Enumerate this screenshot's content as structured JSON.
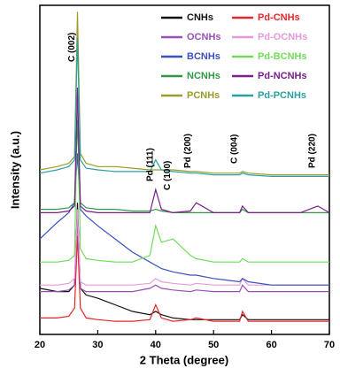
{
  "chart_data": {
    "type": "line",
    "xlabel": "2 Theta (degree)",
    "ylabel": "Intensity (a.u.)",
    "x": [
      20,
      23,
      25,
      26,
      26.5,
      27,
      28,
      30,
      33,
      36,
      39,
      40,
      41,
      43,
      46,
      47,
      50,
      54.5,
      55,
      56,
      60,
      65,
      68,
      70
    ],
    "xlim": [
      20,
      70
    ],
    "xticks": [
      20,
      30,
      40,
      50,
      60,
      70
    ],
    "ylim": [
      0,
      100
    ],
    "series": [
      {
        "name": "CNHs",
        "color": "#111111",
        "values": [
          14,
          13,
          13,
          15,
          40,
          14,
          12,
          11,
          9,
          7,
          6,
          7,
          6,
          5,
          4.5,
          4.5,
          4.5,
          4.5,
          6,
          4.5,
          4.5,
          4.5,
          4.5,
          4.5
        ]
      },
      {
        "name": "Pd-CNHs",
        "color": "#e8262a",
        "values": [
          5,
          5,
          5.5,
          8,
          30,
          8,
          5,
          4.5,
          4,
          4,
          4.5,
          9,
          5,
          4,
          4.5,
          5,
          4,
          4,
          7,
          4,
          4,
          4,
          4,
          4
        ]
      },
      {
        "name": "OCNHs",
        "color": "#9b4fb5",
        "values": [
          13,
          13,
          13.5,
          15,
          35,
          14,
          13,
          13,
          13,
          13,
          14,
          15,
          14,
          13.5,
          13,
          13.5,
          13,
          13,
          15,
          13,
          13,
          13,
          13,
          13
        ]
      },
      {
        "name": "Pd-OCNHs",
        "color": "#e79ad8",
        "values": [
          15,
          15,
          15.5,
          17,
          38,
          16,
          15,
          15,
          15,
          15,
          15.5,
          17,
          16,
          15.5,
          15,
          15.5,
          15,
          15,
          17,
          15,
          15,
          15,
          15,
          15
        ]
      },
      {
        "name": "BCNHs",
        "color": "#3a4fc0",
        "values": [
          29,
          34,
          37,
          40,
          55,
          38,
          36,
          33,
          29,
          25,
          22,
          21,
          20,
          19,
          18,
          18,
          17,
          16,
          17,
          16,
          15,
          15,
          15,
          15
        ]
      },
      {
        "name": "Pd-BCNHs",
        "color": "#6fdc5a",
        "values": [
          22,
          22,
          22.5,
          24,
          70,
          26,
          23,
          22.5,
          22,
          22,
          24,
          33,
          28,
          29,
          24,
          23,
          22,
          22,
          23,
          22,
          22,
          22,
          22,
          22
        ]
      },
      {
        "name": "NCNHs",
        "color": "#2e9a48",
        "values": [
          38,
          38,
          38.5,
          40,
          65,
          40,
          38.5,
          38,
          38,
          37.5,
          37.5,
          38,
          37.5,
          37,
          37,
          37,
          37,
          37,
          38,
          37,
          37,
          37,
          37,
          37
        ]
      },
      {
        "name": "Pd-NCNHs",
        "color": "#7a1f8c",
        "values": [
          37,
          37,
          37.5,
          39,
          75,
          39,
          37.5,
          37,
          37,
          37,
          37,
          44,
          38,
          37,
          37.5,
          40,
          37,
          37,
          39,
          37,
          37,
          37,
          39,
          37
        ]
      },
      {
        "name": "PCNHs",
        "color": "#9b9b2a",
        "values": [
          50,
          51,
          52,
          54,
          98,
          55,
          52,
          51,
          51,
          50.5,
          50,
          50,
          50,
          50,
          49.5,
          49.5,
          49,
          49,
          49.5,
          49,
          48.5,
          48.5,
          48.5,
          48.5
        ]
      },
      {
        "name": "Pd-PCNHs",
        "color": "#2aa0a0",
        "values": [
          49,
          50,
          51,
          53,
          90,
          53,
          50.5,
          50,
          49.5,
          49.5,
          49.5,
          53,
          50,
          49.5,
          49,
          49,
          48.5,
          48.5,
          49,
          48.5,
          48,
          48,
          48,
          48
        ]
      }
    ],
    "annotations": [
      {
        "text": "C (002)",
        "x": 26.5
      },
      {
        "text": "Pd (111)",
        "x": 40
      },
      {
        "text": "C (100)",
        "x": 43
      },
      {
        "text": "Pd (200)",
        "x": 46.5
      },
      {
        "text": "C (004)",
        "x": 54.5
      },
      {
        "text": "Pd (220)",
        "x": 68
      }
    ]
  }
}
